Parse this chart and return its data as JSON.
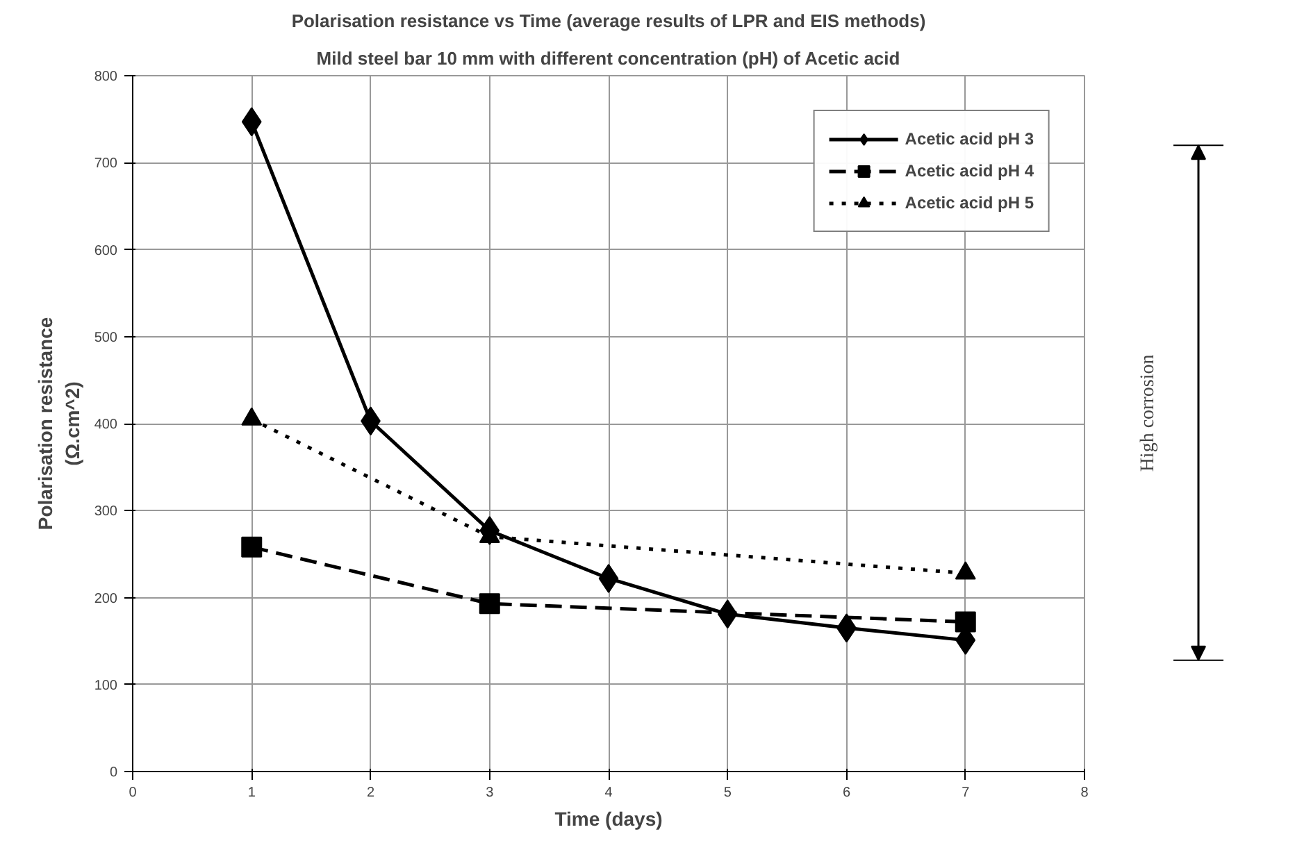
{
  "chart_data": {
    "type": "line",
    "title": "Polarisation resistance vs Time (average results of LPR and EIS methods)",
    "subtitle": "Mild steel bar 10 mm with different concentration (pH) of Acetic acid",
    "xlabel": "Time (days)",
    "ylabel": "Polarisation resistance\n(Ω.cm^2)",
    "xlim": [
      0,
      8
    ],
    "xticks": [
      0,
      1,
      2,
      3,
      4,
      5,
      6,
      7,
      8
    ],
    "ylim": [
      0,
      800
    ],
    "yticks": [
      0,
      100,
      200,
      300,
      400,
      500,
      600,
      700,
      800
    ],
    "grid": true,
    "legend": "top right",
    "series": [
      {
        "name": "Acetic acid pH 3",
        "color": "#000000",
        "marker": "diamond",
        "line_style": "solid",
        "x": [
          1,
          2,
          3,
          4,
          5,
          6,
          7
        ],
        "values": [
          747,
          403,
          277,
          222,
          181,
          165,
          151
        ]
      },
      {
        "name": "Acetic acid pH 4",
        "color": "#000000",
        "marker": "square",
        "line_style": "dashed",
        "x": [
          1,
          3,
          7
        ],
        "values": [
          258,
          193,
          172
        ]
      },
      {
        "name": "Acetic acid pH 5",
        "color": "#000000",
        "marker": "triangle",
        "line_style": "dotted",
        "x": [
          1,
          3,
          7
        ],
        "values": [
          405,
          270,
          228
        ]
      }
    ],
    "annotations": [
      "High corrosion"
    ]
  }
}
